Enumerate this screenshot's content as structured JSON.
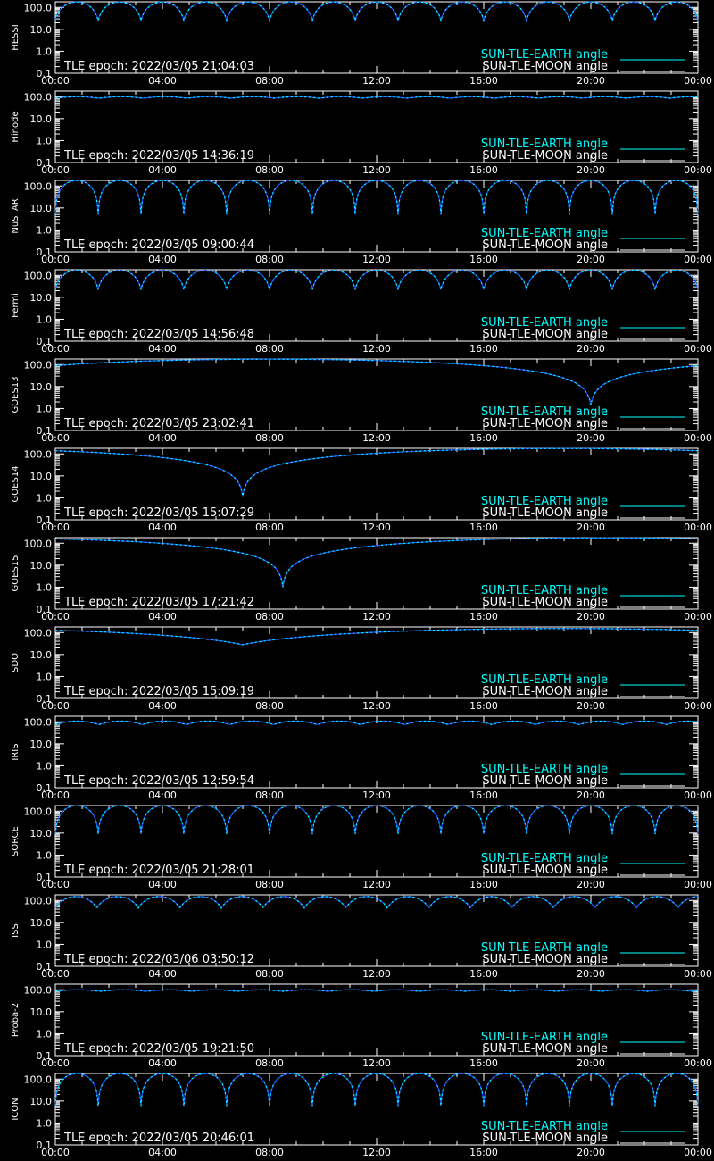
{
  "chart_data": [
    {
      "type": "line",
      "title": "",
      "ylabel": "HESSI",
      "epoch_text": "TLE epoch: 2022/03/05 21:04:03",
      "x_ticks": [
        "00:00",
        "04:00",
        "08:00",
        "12:00",
        "16:00",
        "20:00",
        "00:00"
      ],
      "x_range_hours": [
        0,
        24
      ],
      "y_scale": "log",
      "y_ticks": [
        "100.0",
        "10.0",
        "1.0",
        "0.1"
      ],
      "ylim": [
        0.1,
        180
      ],
      "series": [
        {
          "name": "SUN-TLE-EARTH angle",
          "color": "#00ffff",
          "pattern": "orbital",
          "period_hours": 1.6,
          "max": 175,
          "min": 25
        },
        {
          "name": "SUN-TLE-MOON angle",
          "color": "#ffffff",
          "visible_in_range": false
        }
      ],
      "legend": "bottom-right"
    },
    {
      "type": "line",
      "title": "",
      "ylabel": "Hinode",
      "epoch_text": "TLE epoch: 2022/03/05 14:36:19",
      "x_ticks": [
        "00:00",
        "04:00",
        "08:00",
        "12:00",
        "16:00",
        "20:00",
        "00:00"
      ],
      "x_range_hours": [
        0,
        24
      ],
      "y_scale": "log",
      "y_ticks": [
        "100.0",
        "10.0",
        "1.0",
        "0.1"
      ],
      "ylim": [
        0.1,
        180
      ],
      "series": [
        {
          "name": "SUN-TLE-EARTH angle",
          "color": "#00ffff",
          "pattern": "orbital",
          "period_hours": 1.64,
          "max": 100,
          "min": 85
        },
        {
          "name": "SUN-TLE-MOON angle",
          "color": "#ffffff",
          "visible_in_range": false
        }
      ],
      "legend": "bottom-right"
    },
    {
      "type": "line",
      "title": "",
      "ylabel": "NuSTAR",
      "epoch_text": "TLE epoch: 2022/03/05 09:00:44",
      "x_ticks": [
        "00:00",
        "04:00",
        "08:00",
        "12:00",
        "16:00",
        "20:00",
        "00:00"
      ],
      "x_range_hours": [
        0,
        24
      ],
      "y_scale": "log",
      "y_ticks": [
        "100.0",
        "10.0",
        "1.0",
        "0.1"
      ],
      "ylim": [
        0.1,
        180
      ],
      "series": [
        {
          "name": "SUN-TLE-EARTH angle",
          "color": "#00ffff",
          "pattern": "orbital",
          "period_hours": 1.6,
          "max": 178,
          "min": 5
        },
        {
          "name": "SUN-TLE-MOON angle",
          "color": "#ffffff",
          "visible_in_range": false
        }
      ],
      "legend": "bottom-right"
    },
    {
      "type": "line",
      "title": "",
      "ylabel": "Fermi",
      "epoch_text": "TLE epoch: 2022/03/05 14:56:48",
      "x_ticks": [
        "00:00",
        "04:00",
        "08:00",
        "12:00",
        "16:00",
        "20:00",
        "00:00"
      ],
      "x_range_hours": [
        0,
        24
      ],
      "y_scale": "log",
      "y_ticks": [
        "100.0",
        "10.0",
        "1.0",
        "0.1"
      ],
      "ylim": [
        0.1,
        180
      ],
      "series": [
        {
          "name": "SUN-TLE-EARTH angle",
          "color": "#00ffff",
          "pattern": "orbital",
          "period_hours": 1.6,
          "max": 170,
          "min": 22
        },
        {
          "name": "SUN-TLE-MOON angle",
          "color": "#ffffff",
          "visible_in_range": false
        }
      ],
      "legend": "bottom-right"
    },
    {
      "type": "line",
      "title": "",
      "ylabel": "GOES13",
      "epoch_text": "TLE epoch: 2022/03/05 23:02:41",
      "x_ticks": [
        "00:00",
        "04:00",
        "08:00",
        "12:00",
        "16:00",
        "20:00",
        "00:00"
      ],
      "x_range_hours": [
        0,
        24
      ],
      "y_scale": "log",
      "y_ticks": [
        "100.0",
        "10.0",
        "1.0",
        "0.1"
      ],
      "ylim": [
        0.1,
        180
      ],
      "series": [
        {
          "name": "SUN-TLE-EARTH angle",
          "color": "#00ffff",
          "pattern": "geo",
          "min_hour": 20,
          "min_value": 1.5,
          "max": 176
        },
        {
          "name": "SUN-TLE-MOON angle",
          "color": "#ffffff",
          "visible_in_range": false
        }
      ],
      "legend": "bottom-right"
    },
    {
      "type": "line",
      "title": "",
      "ylabel": "GOES14",
      "epoch_text": "TLE epoch: 2022/03/05 15:07:29",
      "x_ticks": [
        "00:00",
        "04:00",
        "08:00",
        "12:00",
        "16:00",
        "20:00",
        "00:00"
      ],
      "x_range_hours": [
        0,
        24
      ],
      "y_scale": "log",
      "y_ticks": [
        "100.0",
        "10.0",
        "1.0",
        "0.1"
      ],
      "ylim": [
        0.1,
        180
      ],
      "series": [
        {
          "name": "SUN-TLE-EARTH angle",
          "color": "#00ffff",
          "pattern": "geo",
          "min_hour": 7,
          "min_value": 1.2,
          "max": 176
        },
        {
          "name": "SUN-TLE-MOON angle",
          "color": "#ffffff",
          "visible_in_range": false
        }
      ],
      "legend": "bottom-right"
    },
    {
      "type": "line",
      "title": "",
      "ylabel": "GOES15",
      "epoch_text": "TLE epoch: 2022/03/05 17:21:42",
      "x_ticks": [
        "00:00",
        "04:00",
        "08:00",
        "12:00",
        "16:00",
        "20:00",
        "00:00"
      ],
      "x_range_hours": [
        0,
        24
      ],
      "y_scale": "log",
      "y_ticks": [
        "100.0",
        "10.0",
        "1.0",
        "0.1"
      ],
      "ylim": [
        0.1,
        180
      ],
      "series": [
        {
          "name": "SUN-TLE-EARTH angle",
          "color": "#00ffff",
          "pattern": "geo",
          "min_hour": 8.5,
          "min_value": 1.0,
          "max": 176
        },
        {
          "name": "SUN-TLE-MOON angle",
          "color": "#ffffff",
          "visible_in_range": false
        }
      ],
      "legend": "bottom-right"
    },
    {
      "type": "line",
      "title": "",
      "ylabel": "SDO",
      "epoch_text": "TLE epoch: 2022/03/05 15:09:19",
      "x_ticks": [
        "00:00",
        "04:00",
        "08:00",
        "12:00",
        "16:00",
        "20:00",
        "00:00"
      ],
      "x_range_hours": [
        0,
        24
      ],
      "y_scale": "log",
      "y_ticks": [
        "100.0",
        "10.0",
        "1.0",
        "0.1"
      ],
      "ylim": [
        0.1,
        180
      ],
      "series": [
        {
          "name": "SUN-TLE-EARTH angle",
          "color": "#00ffff",
          "pattern": "geo",
          "min_hour": 7,
          "min_value": 28,
          "max": 152
        },
        {
          "name": "SUN-TLE-MOON angle",
          "color": "#ffffff",
          "visible_in_range": false
        }
      ],
      "legend": "bottom-right"
    },
    {
      "type": "line",
      "title": "",
      "ylabel": "IRIS",
      "epoch_text": "TLE epoch: 2022/03/05 12:59:54",
      "x_ticks": [
        "00:00",
        "04:00",
        "08:00",
        "12:00",
        "16:00",
        "20:00",
        "00:00"
      ],
      "x_range_hours": [
        0,
        24
      ],
      "y_scale": "log",
      "y_ticks": [
        "100.0",
        "10.0",
        "1.0",
        "0.1"
      ],
      "ylim": [
        0.1,
        180
      ],
      "series": [
        {
          "name": "SUN-TLE-EARTH angle",
          "color": "#00ffff",
          "pattern": "orbital",
          "period_hours": 1.63,
          "max": 108,
          "min": 75
        },
        {
          "name": "SUN-TLE-MOON angle",
          "color": "#ffffff",
          "visible_in_range": false
        }
      ],
      "legend": "bottom-right"
    },
    {
      "type": "line",
      "title": "",
      "ylabel": "SORCE",
      "epoch_text": "TLE epoch: 2022/03/05 21:28:01",
      "x_ticks": [
        "00:00",
        "04:00",
        "08:00",
        "12:00",
        "16:00",
        "20:00",
        "00:00"
      ],
      "x_range_hours": [
        0,
        24
      ],
      "y_scale": "log",
      "y_ticks": [
        "100.0",
        "10.0",
        "1.0",
        "0.1"
      ],
      "ylim": [
        0.1,
        180
      ],
      "series": [
        {
          "name": "SUN-TLE-EARTH angle",
          "color": "#00ffff",
          "pattern": "orbital",
          "period_hours": 1.6,
          "max": 178,
          "min": 9
        },
        {
          "name": "SUN-TLE-MOON angle",
          "color": "#ffffff",
          "visible_in_range": false
        }
      ],
      "legend": "bottom-right"
    },
    {
      "type": "line",
      "title": "",
      "ylabel": "ISS",
      "epoch_text": "TLE epoch: 2022/03/06 03:50:12",
      "x_ticks": [
        "00:00",
        "04:00",
        "08:00",
        "12:00",
        "16:00",
        "20:00",
        "00:00"
      ],
      "x_range_hours": [
        0,
        24
      ],
      "y_scale": "log",
      "y_ticks": [
        "100.0",
        "10.0",
        "1.0",
        "0.1"
      ],
      "ylim": [
        0.1,
        180
      ],
      "series": [
        {
          "name": "SUN-TLE-EARTH angle",
          "color": "#00ffff",
          "pattern": "orbital",
          "period_hours": 1.55,
          "max": 150,
          "min": 45
        },
        {
          "name": "SUN-TLE-MOON angle",
          "color": "#ffffff",
          "visible_in_range": false
        }
      ],
      "legend": "bottom-right"
    },
    {
      "type": "line",
      "title": "",
      "ylabel": "Proba-2",
      "epoch_text": "TLE epoch: 2022/03/05 19:21:50",
      "x_ticks": [
        "00:00",
        "04:00",
        "08:00",
        "12:00",
        "16:00",
        "20:00",
        "00:00"
      ],
      "x_range_hours": [
        0,
        24
      ],
      "y_scale": "log",
      "y_ticks": [
        "100.0",
        "10.0",
        "1.0",
        "0.1"
      ],
      "ylim": [
        0.1,
        180
      ],
      "series": [
        {
          "name": "SUN-TLE-EARTH angle",
          "color": "#00ffff",
          "pattern": "orbital",
          "period_hours": 1.7,
          "max": 100,
          "min": 85
        },
        {
          "name": "SUN-TLE-MOON angle",
          "color": "#ffffff",
          "visible_in_range": false
        }
      ],
      "legend": "bottom-right"
    },
    {
      "type": "line",
      "title": "",
      "ylabel": "ICON",
      "epoch_text": "TLE epoch: 2022/03/05 20:46:01",
      "x_ticks": [
        "00:00",
        "04:00",
        "08:00",
        "12:00",
        "16:00",
        "20:00",
        "00:00"
      ],
      "x_range_hours": [
        0,
        24
      ],
      "y_scale": "log",
      "y_ticks": [
        "100.0",
        "10.0",
        "1.0",
        "0.1"
      ],
      "ylim": [
        0.1,
        180
      ],
      "series": [
        {
          "name": "SUN-TLE-EARTH angle",
          "color": "#00ffff",
          "pattern": "orbital",
          "period_hours": 1.6,
          "max": 178,
          "min": 6
        },
        {
          "name": "SUN-TLE-MOON angle",
          "color": "#ffffff",
          "visible_in_range": false
        }
      ],
      "legend": "bottom-right"
    }
  ]
}
